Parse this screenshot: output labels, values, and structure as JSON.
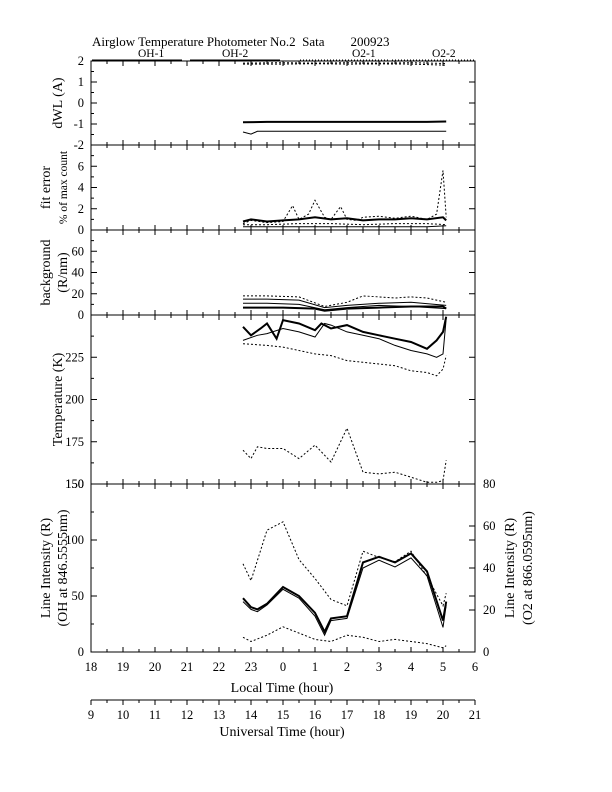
{
  "figure": {
    "title": "Airglow Temperature Photometer No.2  Sata        200923",
    "legend": [
      {
        "label": "OH-1",
        "style": "solid"
      },
      {
        "label": "OH-2",
        "style": "solid"
      },
      {
        "label": "O2-1",
        "style": "dotted"
      },
      {
        "label": "O2-2",
        "style": "dotted"
      }
    ],
    "lt_axis": {
      "label": "Local Time (hour)",
      "ticks": [
        "18",
        "19",
        "20",
        "21",
        "22",
        "23",
        "0",
        "1",
        "2",
        "3",
        "4",
        "5",
        "6"
      ]
    },
    "ut_axis": {
      "label": "Universal Time (hour)",
      "ticks": [
        "9",
        "10",
        "11",
        "12",
        "13",
        "14",
        "15",
        "16",
        "17",
        "18",
        "19",
        "20",
        "21"
      ]
    }
  },
  "chart_data": [
    {
      "type": "line",
      "ylabel": "dWL (A)",
      "ylim": [
        -2,
        2
      ],
      "yticks": [
        "-2",
        "-1",
        "0",
        "1",
        "2"
      ],
      "x_unit": "UT hour",
      "series": [
        {
          "name": "OH-1",
          "style": "solid-thick",
          "x": [
            13.75,
            14.5,
            15.5,
            16.5,
            17.5,
            18.5,
            19.5,
            20.1
          ],
          "y": [
            -0.92,
            -0.9,
            -0.9,
            -0.9,
            -0.9,
            -0.9,
            -0.9,
            -0.88
          ]
        },
        {
          "name": "OH-2",
          "style": "solid",
          "x": [
            13.75,
            14.0,
            14.2,
            15.0,
            16.0,
            17.0,
            18.0,
            19.0,
            20.1
          ],
          "y": [
            -1.38,
            -1.48,
            -1.35,
            -1.35,
            -1.35,
            -1.35,
            -1.35,
            -1.35,
            -1.35
          ]
        },
        {
          "name": "O2-1",
          "style": "dotted",
          "x": [
            13.75,
            15.0,
            16.0,
            17.0,
            18.0,
            19.0,
            20.1
          ],
          "y": [
            1.85,
            1.85,
            1.87,
            1.85,
            1.86,
            1.85,
            1.8
          ]
        },
        {
          "name": "O2-2",
          "style": "dotted",
          "x": [
            13.75,
            15.0,
            16.0,
            17.0,
            18.0,
            19.0,
            20.1
          ],
          "y": [
            1.9,
            1.92,
            1.9,
            1.92,
            1.9,
            1.92,
            1.88
          ]
        }
      ]
    },
    {
      "type": "line",
      "ylabel": "fit error",
      "ylabel2": "% of max count",
      "ylim": [
        0,
        8
      ],
      "yticks": [
        "0",
        "2",
        "4",
        "6"
      ],
      "x_unit": "UT hour",
      "series": [
        {
          "name": "OH-1",
          "style": "solid-thick",
          "x": [
            13.75,
            14.0,
            14.5,
            15.0,
            15.5,
            16.0,
            16.5,
            17.0,
            17.5,
            18.0,
            18.5,
            19.0,
            19.5,
            20.0,
            20.1
          ],
          "y": [
            0.8,
            1.0,
            0.8,
            0.9,
            1.0,
            1.2,
            1.0,
            1.1,
            0.9,
            1.0,
            1.0,
            1.1,
            1.0,
            1.2,
            0.9
          ]
        },
        {
          "name": "OH-2",
          "style": "solid",
          "x": [
            13.75,
            14.5,
            15.5,
            16.5,
            17.5,
            18.5,
            19.5,
            20.1
          ],
          "y": [
            0.3,
            0.3,
            0.3,
            0.3,
            0.3,
            0.3,
            0.3,
            0.4
          ]
        },
        {
          "name": "O2-1",
          "style": "dotted",
          "x": [
            13.75,
            14.0,
            14.5,
            15.0,
            15.3,
            15.5,
            15.8,
            16.0,
            16.3,
            16.5,
            16.8,
            17.0,
            17.3,
            17.5,
            18.0,
            18.5,
            19.0,
            19.5,
            19.8,
            20.0,
            20.1
          ],
          "y": [
            0.6,
            0.9,
            0.7,
            0.8,
            2.3,
            1.0,
            1.5,
            2.8,
            1.2,
            1.0,
            2.2,
            1.0,
            0.9,
            1.2,
            1.3,
            1.1,
            1.3,
            1.0,
            1.5,
            5.6,
            1.2
          ]
        },
        {
          "name": "O2-2",
          "style": "dotted",
          "x": [
            13.75,
            14.5,
            15.5,
            16.5,
            17.5,
            18.5,
            19.5,
            20.1
          ],
          "y": [
            0.5,
            0.5,
            0.6,
            0.6,
            0.5,
            0.6,
            0.6,
            0.5
          ]
        }
      ]
    },
    {
      "type": "line",
      "ylabel": "background",
      "ylabel2": "(R/nm)",
      "ylim": [
        0,
        80
      ],
      "yticks": [
        "0",
        "20",
        "40",
        "60"
      ],
      "x_unit": "UT hour",
      "series": [
        {
          "name": "OH-1",
          "style": "solid-thick",
          "x": [
            13.75,
            15.0,
            16.0,
            16.3,
            17.0,
            18.0,
            19.0,
            20.0,
            20.1
          ],
          "y": [
            7,
            7,
            6,
            4,
            6,
            7,
            8,
            8,
            6
          ]
        },
        {
          "name": "OH-2",
          "style": "solid",
          "x": [
            13.75,
            14.5,
            15.5,
            16.3,
            17.0,
            18.0,
            19.0,
            20.1
          ],
          "y": [
            11,
            11,
            10,
            5,
            7,
            9,
            8,
            6
          ]
        },
        {
          "name": "O2-1",
          "style": "solid",
          "x": [
            13.75,
            14.5,
            15.5,
            16.3,
            17.0,
            18.0,
            19.0,
            20.1
          ],
          "y": [
            15,
            15,
            14,
            7,
            9,
            11,
            12,
            9
          ]
        },
        {
          "name": "O2-2",
          "style": "dotted",
          "x": [
            13.75,
            14.5,
            15.5,
            16.3,
            17.0,
            17.5,
            18.0,
            18.5,
            19.0,
            19.5,
            20.1
          ],
          "y": [
            18,
            18,
            17,
            8,
            12,
            18,
            17,
            16,
            17,
            16,
            12
          ]
        }
      ]
    },
    {
      "type": "line",
      "ylabel": "Temperature (K)",
      "ylim": [
        150,
        250
      ],
      "yticks": [
        "150",
        "175",
        "200",
        "225"
      ],
      "x_unit": "UT hour",
      "series": [
        {
          "name": "OH-1",
          "style": "solid-thick",
          "x": [
            13.75,
            14.0,
            14.3,
            14.5,
            14.8,
            15.0,
            15.5,
            16.0,
            16.2,
            16.5,
            17.0,
            17.5,
            18.0,
            18.5,
            19.0,
            19.5,
            19.8,
            20.0,
            20.1
          ],
          "y": [
            243,
            238,
            242,
            245,
            236,
            247,
            245,
            241,
            245,
            242,
            244,
            240,
            238,
            236,
            234,
            230,
            235,
            240,
            249
          ]
        },
        {
          "name": "OH-2",
          "style": "solid",
          "x": [
            13.75,
            14.2,
            14.5,
            15.0,
            15.5,
            16.0,
            16.3,
            16.5,
            17.0,
            17.5,
            18.0,
            18.5,
            19.0,
            19.5,
            19.8,
            20.0,
            20.1
          ],
          "y": [
            235,
            238,
            239,
            242,
            240,
            237,
            245,
            244,
            240,
            238,
            236,
            232,
            229,
            227,
            225,
            227,
            248
          ]
        },
        {
          "name": "O2-1",
          "style": "dotted",
          "x": [
            13.75,
            14.0,
            14.2,
            14.5,
            15.0,
            15.5,
            16.0,
            16.5,
            17.0,
            17.5,
            18.0,
            18.5,
            19.0,
            19.5,
            19.8,
            20.0,
            20.1
          ],
          "y": [
            170,
            165,
            172,
            171,
            171,
            165,
            173,
            163,
            183,
            157,
            156,
            157,
            154,
            151,
            151,
            152,
            164
          ]
        },
        {
          "name": "O2-2",
          "style": "dotted",
          "x": [
            13.75,
            14.5,
            15.0,
            15.5,
            16.0,
            16.5,
            17.0,
            17.5,
            18.0,
            18.5,
            19.0,
            19.5,
            19.8,
            20.0,
            20.1
          ],
          "y": [
            233,
            232,
            231,
            229,
            227,
            226,
            223,
            222,
            221,
            220,
            217,
            216,
            214,
            218,
            226
          ]
        }
      ]
    },
    {
      "type": "line",
      "ylabel": "Line Intensity (R)",
      "ylabel2": "(OH at 846.5555nm)",
      "ylim": [
        0,
        150
      ],
      "yticks": [
        "0",
        "50",
        "100",
        "150"
      ],
      "y2label": "Line Intensity (R)",
      "y2label2": "(O2 at 866.0595nm)",
      "y2lim": [
        0,
        80
      ],
      "y2ticks": [
        "0",
        "20",
        "40",
        "60",
        "80"
      ],
      "x_unit": "UT hour",
      "series": [
        {
          "name": "OH-1",
          "style": "solid-thick",
          "axis": "left",
          "x": [
            13.75,
            14.0,
            14.2,
            14.5,
            15.0,
            15.5,
            16.0,
            16.3,
            16.5,
            17.0,
            17.5,
            18.0,
            18.5,
            19.0,
            19.5,
            20.0,
            20.1
          ],
          "y": [
            48,
            40,
            38,
            43,
            58,
            50,
            35,
            18,
            30,
            32,
            80,
            85,
            80,
            88,
            72,
            28,
            45
          ]
        },
        {
          "name": "OH-2",
          "style": "solid",
          "axis": "left",
          "x": [
            13.75,
            14.0,
            14.2,
            14.5,
            15.0,
            15.5,
            16.0,
            16.3,
            16.5,
            17.0,
            17.5,
            18.0,
            18.5,
            19.0,
            19.5,
            20.0,
            20.1
          ],
          "y": [
            45,
            38,
            36,
            42,
            56,
            48,
            32,
            15,
            28,
            30,
            75,
            82,
            76,
            84,
            68,
            22,
            42
          ]
        },
        {
          "name": "O2-1",
          "style": "dotted",
          "axis": "right",
          "x": [
            13.75,
            14.0,
            14.5,
            15.0,
            15.5,
            16.0,
            16.5,
            17.0,
            17.5,
            18.0,
            18.5,
            19.0,
            19.5,
            20.0,
            20.1
          ],
          "y": [
            42,
            34,
            58,
            62,
            44,
            35,
            25,
            22,
            48,
            45,
            43,
            48,
            36,
            22,
            28
          ]
        },
        {
          "name": "O2-2",
          "style": "dotted",
          "axis": "right",
          "x": [
            13.75,
            14.0,
            14.5,
            15.0,
            15.5,
            16.0,
            16.5,
            17.0,
            17.5,
            18.0,
            18.5,
            19.0,
            19.5,
            20.0,
            20.1
          ],
          "y": [
            7,
            5,
            8,
            12,
            9,
            6,
            5,
            8,
            7,
            5,
            6,
            5,
            4,
            2,
            3
          ]
        }
      ]
    }
  ]
}
